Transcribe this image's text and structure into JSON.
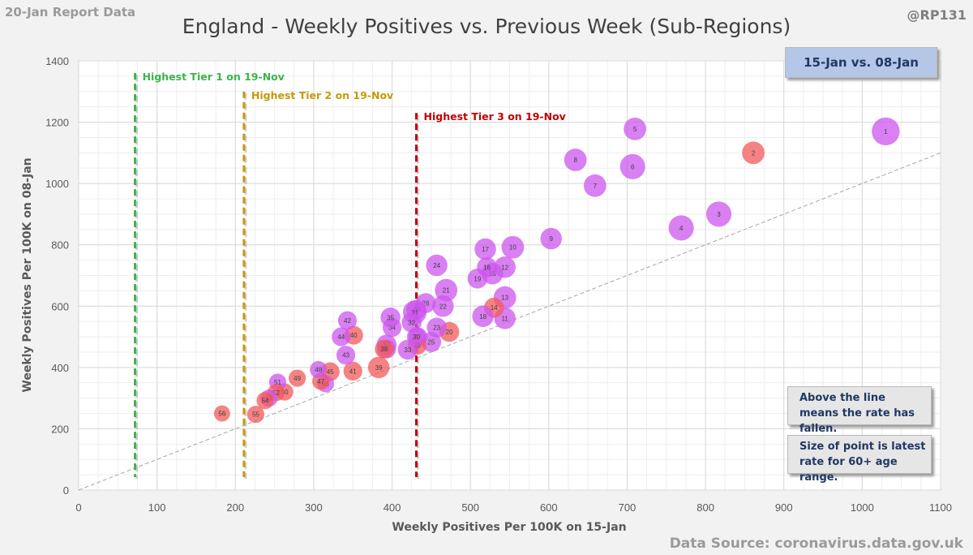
{
  "header": {
    "report_date": "20-Jan Report Data",
    "handle": "@RP131",
    "source": "Data Source: coronavirus.data.gov.uk"
  },
  "legend_box": {
    "period": "15-Jan vs. 08-Jan"
  },
  "notes": {
    "line_meaning": "Above the line means the rate has fallen.",
    "point_size": "Size of point is latest rate for 60+ age range."
  },
  "colors": {
    "tier1": "#3cb44b",
    "tier2": "#c59a06",
    "tier3": "#c00000",
    "bubble_purple": "#cc55ee",
    "bubble_red": "#f25a5a",
    "text": "#404040",
    "grid": "#d9d9d9",
    "label_color": "#595959"
  },
  "chart_data": {
    "type": "scatter",
    "title": "England - Weekly Positives vs. Previous Week (Sub-Regions)",
    "xlabel": "Weekly Positives Per 100K on 15-Jan",
    "ylabel": "Weekly Positives Per 100K on 08-Jan",
    "xlim": [
      0,
      1100
    ],
    "ylim": [
      0,
      1400
    ],
    "x_ticks": [
      0,
      100,
      200,
      300,
      400,
      500,
      600,
      700,
      800,
      900,
      1000,
      1100
    ],
    "y_ticks": [
      0,
      200,
      400,
      600,
      800,
      1000,
      1200,
      1400
    ],
    "grid": true,
    "reference_line": {
      "type": "diagonal",
      "equation": "y = x"
    },
    "tier_lines": [
      {
        "label": "Highest Tier 1 on 19-Nov",
        "x": 72,
        "y_top": 1360,
        "color": "tier1"
      },
      {
        "label": "Highest Tier 2 on 19-Nov",
        "x": 211,
        "y_top": 1300,
        "color": "tier2"
      },
      {
        "label": "Highest Tier 3 on 19-Nov",
        "x": 431,
        "y_top": 1230,
        "color": "tier3"
      }
    ],
    "points": [
      {
        "id": 1,
        "x": 1030,
        "y": 1170,
        "size": 4,
        "color": "purple"
      },
      {
        "id": 2,
        "x": 861,
        "y": 1100,
        "size": 3,
        "color": "red"
      },
      {
        "id": 3,
        "x": 817,
        "y": 900,
        "size": 3.5,
        "color": "purple"
      },
      {
        "id": 4,
        "x": 769,
        "y": 855,
        "size": 3.5,
        "color": "purple"
      },
      {
        "id": 5,
        "x": 710,
        "y": 1178,
        "size": 3,
        "color": "purple"
      },
      {
        "id": 6,
        "x": 707,
        "y": 1055,
        "size": 3.5,
        "color": "purple"
      },
      {
        "id": 7,
        "x": 659,
        "y": 993,
        "size": 3,
        "color": "purple"
      },
      {
        "id": 8,
        "x": 634,
        "y": 1077,
        "size": 3,
        "color": "purple"
      },
      {
        "id": 9,
        "x": 603,
        "y": 820,
        "size": 2.8,
        "color": "purple"
      },
      {
        "id": 10,
        "x": 554,
        "y": 792,
        "size": 3,
        "color": "purple"
      },
      {
        "id": 11,
        "x": 544,
        "y": 560,
        "size": 2.8,
        "color": "purple"
      },
      {
        "id": 12,
        "x": 544,
        "y": 727,
        "size": 2.8,
        "color": "purple"
      },
      {
        "id": 13,
        "x": 544,
        "y": 628,
        "size": 3,
        "color": "purple"
      },
      {
        "id": 14,
        "x": 530,
        "y": 595,
        "size": 2.5,
        "color": "red"
      },
      {
        "id": 15,
        "x": 528,
        "y": 706,
        "size": 2.8,
        "color": "purple"
      },
      {
        "id": 16,
        "x": 521,
        "y": 727,
        "size": 2.5,
        "color": "purple"
      },
      {
        "id": 17,
        "x": 519,
        "y": 786,
        "size": 2.8,
        "color": "purple"
      },
      {
        "id": 18,
        "x": 516,
        "y": 567,
        "size": 2.8,
        "color": "purple"
      },
      {
        "id": 19,
        "x": 509,
        "y": 690,
        "size": 2.5,
        "color": "purple"
      },
      {
        "id": 20,
        "x": 473,
        "y": 516,
        "size": 2.5,
        "color": "red"
      },
      {
        "id": 21,
        "x": 469,
        "y": 652,
        "size": 3,
        "color": "purple"
      },
      {
        "id": 22,
        "x": 465,
        "y": 600,
        "size": 2.8,
        "color": "purple"
      },
      {
        "id": 23,
        "x": 457,
        "y": 530,
        "size": 2.5,
        "color": "purple"
      },
      {
        "id": 24,
        "x": 457,
        "y": 733,
        "size": 2.8,
        "color": "purple"
      },
      {
        "id": 25,
        "x": 450,
        "y": 483,
        "size": 2.5,
        "color": "purple"
      },
      {
        "id": 26,
        "x": 443,
        "y": 610,
        "size": 2.5,
        "color": "purple"
      },
      {
        "id": 27,
        "x": 433,
        "y": 500,
        "size": 2.3,
        "color": "purple"
      },
      {
        "id": 28,
        "x": 432,
        "y": 472,
        "size": 2.3,
        "color": "red"
      },
      {
        "id": 29,
        "x": 431,
        "y": 588,
        "size": 2.5,
        "color": "purple"
      },
      {
        "id": 30,
        "x": 431,
        "y": 500,
        "size": 2.3,
        "color": "purple"
      },
      {
        "id": 31,
        "x": 429,
        "y": 580,
        "size": 3.2,
        "color": "purple"
      },
      {
        "id": 32,
        "x": 425,
        "y": 547,
        "size": 2.5,
        "color": "purple"
      },
      {
        "id": 33,
        "x": 420,
        "y": 458,
        "size": 2.5,
        "color": "purple"
      },
      {
        "id": 34,
        "x": 400,
        "y": 530,
        "size": 2.3,
        "color": "purple"
      },
      {
        "id": 35,
        "x": 398,
        "y": 563,
        "size": 2.5,
        "color": "purple"
      },
      {
        "id": 36,
        "x": 393,
        "y": 460,
        "size": 2.3,
        "color": "purple"
      },
      {
        "id": 37,
        "x": 393,
        "y": 475,
        "size": 2.5,
        "color": "purple"
      },
      {
        "id": 38,
        "x": 390,
        "y": 460,
        "size": 2.3,
        "color": "red"
      },
      {
        "id": 39,
        "x": 383,
        "y": 400,
        "size": 2.8,
        "color": "red"
      },
      {
        "id": 40,
        "x": 351,
        "y": 505,
        "size": 2.3,
        "color": "red"
      },
      {
        "id": 41,
        "x": 350,
        "y": 388,
        "size": 2.3,
        "color": "red"
      },
      {
        "id": 42,
        "x": 343,
        "y": 553,
        "size": 2.3,
        "color": "purple"
      },
      {
        "id": 43,
        "x": 341,
        "y": 440,
        "size": 2.3,
        "color": "purple"
      },
      {
        "id": 44,
        "x": 335,
        "y": 500,
        "size": 2.3,
        "color": "purple"
      },
      {
        "id": 45,
        "x": 321,
        "y": 386,
        "size": 2.3,
        "color": "red"
      },
      {
        "id": 46,
        "x": 315,
        "y": 347,
        "size": 2,
        "color": "purple"
      },
      {
        "id": 47,
        "x": 309,
        "y": 355,
        "size": 2,
        "color": "red"
      },
      {
        "id": 48,
        "x": 306,
        "y": 393,
        "size": 2,
        "color": "purple"
      },
      {
        "id": 49,
        "x": 279,
        "y": 365,
        "size": 2,
        "color": "red"
      },
      {
        "id": 50,
        "x": 263,
        "y": 320,
        "size": 2,
        "color": "red"
      },
      {
        "id": 51,
        "x": 254,
        "y": 352,
        "size": 2,
        "color": "purple"
      },
      {
        "id": 52,
        "x": 252,
        "y": 318,
        "size": 2,
        "color": "red"
      },
      {
        "id": 53,
        "x": 243,
        "y": 300,
        "size": 2,
        "color": "purple"
      },
      {
        "id": 54,
        "x": 238,
        "y": 292,
        "size": 2,
        "color": "red"
      },
      {
        "id": 55,
        "x": 226,
        "y": 247,
        "size": 2,
        "color": "red"
      },
      {
        "id": 56,
        "x": 183,
        "y": 250,
        "size": 1.8,
        "color": "red"
      }
    ]
  }
}
